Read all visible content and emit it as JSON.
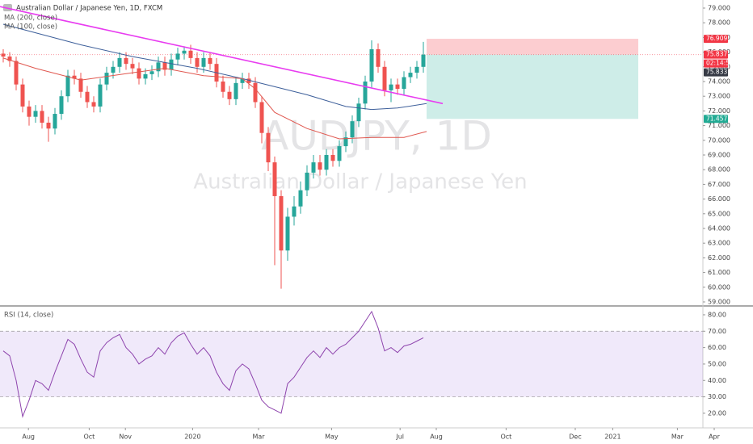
{
  "chart_data": [
    {
      "type": "candlestick",
      "title": "Australian Dollar / Japanese Yen, 1D, FXCM",
      "watermark_symbol": "AUDJPY, 1D",
      "watermark_name": "Australian Dollar / Japanese Yen",
      "up_color": "#26a69a",
      "down_color": "#ef5350",
      "x": [
        0,
        1,
        2,
        3,
        4,
        5,
        6,
        7,
        8,
        9,
        10,
        11,
        12,
        13,
        14,
        15,
        16,
        17,
        18,
        19,
        20,
        21,
        22,
        23,
        24,
        25,
        26,
        27,
        28,
        29,
        30,
        31,
        32,
        33,
        34,
        35,
        36,
        37,
        38,
        39,
        40,
        41,
        42,
        43,
        44,
        45,
        46,
        47,
        48,
        49,
        50,
        51,
        52,
        53,
        54,
        55,
        56,
        57,
        58,
        59,
        60,
        61,
        62,
        63,
        64,
        65
      ],
      "open": [
        75.9,
        75.7,
        75.4,
        73.8,
        72.3,
        71.6,
        72.0,
        71.2,
        70.8,
        71.8,
        73.0,
        74.4,
        74.2,
        73.3,
        72.6,
        72.3,
        73.8,
        74.6,
        75.0,
        75.6,
        75.2,
        74.9,
        74.2,
        74.5,
        74.7,
        75.3,
        74.8,
        75.5,
        75.9,
        76.1,
        75.6,
        75.0,
        75.6,
        75.2,
        74.0,
        73.3,
        72.8,
        73.9,
        74.2,
        73.9,
        72.6,
        70.5,
        68.5,
        66.2,
        62.5,
        64.8,
        65.5,
        66.6,
        67.8,
        68.5,
        68.0,
        69.0,
        68.6,
        69.6,
        70.2,
        71.3,
        72.5,
        74.0,
        76.2,
        75.0,
        73.4,
        73.8,
        73.5,
        74.3,
        74.6,
        75.0
      ],
      "high": [
        76.2,
        76.0,
        75.7,
        74.2,
        72.7,
        72.4,
        72.4,
        71.6,
        72.2,
        73.4,
        74.8,
        74.8,
        74.6,
        73.7,
        73.0,
        74.2,
        75.0,
        75.4,
        76.0,
        76.0,
        75.6,
        75.3,
        74.9,
        75.1,
        75.7,
        75.7,
        75.9,
        76.3,
        76.4,
        76.5,
        76.0,
        76.0,
        76.0,
        75.6,
        74.4,
        73.7,
        74.3,
        74.6,
        74.6,
        74.3,
        73.0,
        70.9,
        68.9,
        66.6,
        65.4,
        66.2,
        67.2,
        68.3,
        69.0,
        69.0,
        69.4,
        69.4,
        70.0,
        70.6,
        71.7,
        72.9,
        74.4,
        76.8,
        76.6,
        75.4,
        74.2,
        74.2,
        74.7,
        75.0,
        75.4,
        76.7
      ],
      "low": [
        75.3,
        75.0,
        73.4,
        71.9,
        71.0,
        71.2,
        70.8,
        69.9,
        70.4,
        71.4,
        72.6,
        73.8,
        72.9,
        72.2,
        71.9,
        71.9,
        73.4,
        74.2,
        74.6,
        74.8,
        74.5,
        73.8,
        73.8,
        74.1,
        74.3,
        74.4,
        74.4,
        75.1,
        75.5,
        75.2,
        74.6,
        74.6,
        74.8,
        73.6,
        72.9,
        72.4,
        72.4,
        73.5,
        73.5,
        72.2,
        69.8,
        67.9,
        61.5,
        59.9,
        61.8,
        64.2,
        65.0,
        66.2,
        67.4,
        67.6,
        67.6,
        68.2,
        68.2,
        69.2,
        69.8,
        70.9,
        72.1,
        73.6,
        74.6,
        73.0,
        72.6,
        73.1,
        73.1,
        73.9,
        74.2,
        74.6
      ],
      "close": [
        75.7,
        75.4,
        73.8,
        72.3,
        71.6,
        72.0,
        71.2,
        70.8,
        71.8,
        73.0,
        74.4,
        74.2,
        73.3,
        72.6,
        72.3,
        73.8,
        74.6,
        75.0,
        75.6,
        75.2,
        74.9,
        74.2,
        74.5,
        74.7,
        75.3,
        74.8,
        75.5,
        75.9,
        76.1,
        75.6,
        75.0,
        75.6,
        75.2,
        74.0,
        73.3,
        72.8,
        73.9,
        74.2,
        73.9,
        72.6,
        70.5,
        68.5,
        66.2,
        62.5,
        64.8,
        65.5,
        66.6,
        67.8,
        68.5,
        68.0,
        69.0,
        68.6,
        69.6,
        70.2,
        71.3,
        72.5,
        74.0,
        76.2,
        75.0,
        73.4,
        73.8,
        73.5,
        74.3,
        74.6,
        75.0,
        75.833
      ],
      "last_color": "#363a45",
      "series": [
        {
          "name": "MA (200, close)",
          "color": "#3d5f9a",
          "x": [
            0,
            12,
            20,
            30,
            37,
            47,
            53,
            57,
            61,
            65.5
          ],
          "values": [
            77.9,
            76.5,
            75.7,
            74.9,
            74.2,
            73.1,
            72.3,
            72.1,
            72.2,
            72.5
          ]
        },
        {
          "name": "MA (100, close)",
          "color": "#e0574f",
          "x": [
            0,
            5,
            12,
            20,
            25,
            31,
            37,
            39,
            42,
            47,
            52,
            57,
            62,
            65.5
          ],
          "values": [
            75.6,
            74.9,
            74.1,
            74.6,
            74.9,
            74.4,
            74.2,
            73.5,
            71.9,
            70.8,
            70.1,
            70.2,
            70.2,
            70.6
          ]
        }
      ],
      "trendline": {
        "color": "#e83cf0",
        "x": [
          -0.5,
          68
        ],
        "values": [
          79.1,
          72.5
        ]
      },
      "position": {
        "x": [
          65.5,
          98.25
        ],
        "stop": 76.909,
        "entry": 75.837,
        "target": 71.457,
        "loss_color": "#f23645",
        "profit_color": "#22ab94"
      },
      "countdown": "02:14:52",
      "xlim": [
        -0.5,
        116
      ],
      "xticks": [
        {
          "value": 3.9,
          "label": "Aug"
        },
        {
          "value": 13.3,
          "label": "Oct"
        },
        {
          "value": 18.9,
          "label": "Nov"
        },
        {
          "value": 29.3,
          "label": "2020"
        },
        {
          "value": 39.5,
          "label": "Mar"
        },
        {
          "value": 50.8,
          "label": "May"
        },
        {
          "value": 61.4,
          "label": "Jul"
        },
        {
          "value": 67,
          "label": "Aug"
        },
        {
          "value": 77.8,
          "label": "Oct"
        },
        {
          "value": 88.5,
          "label": "Dec"
        },
        {
          "value": 94.3,
          "label": "2021"
        },
        {
          "value": 104.3,
          "label": "Mar"
        },
        {
          "value": 110,
          "label": "Apr"
        }
      ],
      "ylim": [
        58.78,
        79.55
      ],
      "yticks": [
        {
          "value": 59,
          "label": "59.000"
        },
        {
          "value": 60,
          "label": "60.000"
        },
        {
          "value": 61,
          "label": "61.000"
        },
        {
          "value": 62,
          "label": "62.000"
        },
        {
          "value": 63,
          "label": "63.000"
        },
        {
          "value": 64,
          "label": "64.000"
        },
        {
          "value": 65,
          "label": "65.000"
        },
        {
          "value": 66,
          "label": "66.000"
        },
        {
          "value": 67,
          "label": "67.000"
        },
        {
          "value": 68,
          "label": "68.000"
        },
        {
          "value": 69,
          "label": "69.000"
        },
        {
          "value": 70,
          "label": "70.000"
        },
        {
          "value": 71,
          "label": "71.000"
        },
        {
          "value": 72,
          "label": "72.000"
        },
        {
          "value": 73,
          "label": "73.000"
        },
        {
          "value": 74,
          "label": "74.000"
        },
        {
          "value": 75,
          "label": "75.000"
        },
        {
          "value": 76,
          "label": "76.000"
        },
        {
          "value": 77,
          "label": "77.000"
        },
        {
          "value": 78,
          "label": "78.000"
        },
        {
          "value": 79,
          "label": "79.000"
        }
      ]
    },
    {
      "type": "line",
      "x": [
        0,
        1,
        2,
        3,
        4,
        5,
        6,
        7,
        8,
        9,
        10,
        11,
        12,
        13,
        14,
        15,
        16,
        17,
        18,
        19,
        20,
        21,
        22,
        23,
        24,
        25,
        26,
        27,
        28,
        29,
        30,
        31,
        32,
        33,
        34,
        35,
        36,
        37,
        38,
        39,
        40,
        41,
        42,
        43,
        44,
        45,
        46,
        47,
        48,
        49,
        50,
        51,
        52,
        53,
        54,
        55,
        56,
        57,
        58,
        59,
        60,
        61,
        62,
        63,
        64,
        65
      ],
      "series": [
        {
          "name": "RSI (14, close)",
          "color": "#8e44ad",
          "values": [
            58,
            55,
            40,
            18,
            28,
            40,
            38,
            34,
            45,
            55,
            65,
            62,
            53,
            45,
            42,
            58,
            63,
            66,
            68,
            60,
            56,
            50,
            53,
            55,
            60,
            56,
            63,
            67,
            69,
            62,
            56,
            60,
            55,
            45,
            38,
            34,
            46,
            50,
            47,
            38,
            28,
            24,
            22,
            20,
            38,
            42,
            48,
            54,
            58,
            54,
            60,
            56,
            60,
            62,
            66,
            70,
            76,
            82,
            72,
            58,
            60,
            57,
            61,
            62,
            64,
            66
          ]
        }
      ],
      "band": [
        30,
        70
      ],
      "band_color": "#9c6ade",
      "xlim": [
        -0.5,
        116
      ],
      "ylim": [
        11.1,
        84.9
      ],
      "yticks": [
        {
          "value": 20,
          "label": "20.00"
        },
        {
          "value": 30,
          "label": "30.00"
        },
        {
          "value": 40,
          "label": "40.00"
        },
        {
          "value": 50,
          "label": "50.00"
        },
        {
          "value": 60,
          "label": "60.00"
        },
        {
          "value": 70,
          "label": "70.00"
        },
        {
          "value": 80,
          "label": "80.00"
        }
      ]
    }
  ]
}
